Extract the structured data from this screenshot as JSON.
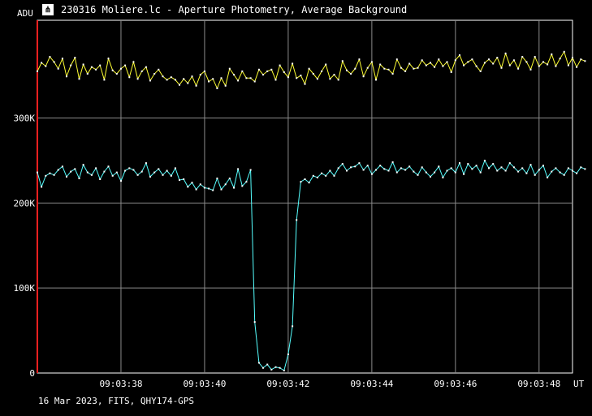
{
  "window": {
    "title": "230316 Moliere.lc - Aperture Photometry, Average Background",
    "footer": "16 Mar 2023, FITS, QHY174-GPS",
    "app_icon": "lightcurve-app-icon"
  },
  "chart_data": {
    "type": "line",
    "title": "230316 Moliere.lc - Aperture Photometry, Average Background",
    "xlabel": "UT",
    "ylabel": "ADU",
    "x_unit": "seconds after 09:03:36",
    "xlim": [
      36.0,
      48.8
    ],
    "ylim": [
      0,
      415000
    ],
    "grid": true,
    "y_ticks": [
      {
        "value": 0,
        "label": "0"
      },
      {
        "value": 100000,
        "label": "100K"
      },
      {
        "value": 200000,
        "label": "200K"
      },
      {
        "value": 300000,
        "label": "300K"
      }
    ],
    "x_ticks": [
      {
        "value": 38,
        "label": "09:03:38"
      },
      {
        "value": 40,
        "label": "09:03:40"
      },
      {
        "value": 42,
        "label": "09:03:42"
      },
      {
        "value": 44,
        "label": "09:03:44"
      },
      {
        "value": 46,
        "label": "09:03:46"
      },
      {
        "value": 48,
        "label": "09:03:48"
      }
    ],
    "event_marker": {
      "x": 36.0,
      "color": "#ff2020"
    },
    "series": [
      {
        "color": "#ffff33",
        "x_start": 36.0,
        "x_step": 0.1,
        "values": [
          355000,
          365000,
          361000,
          372000,
          366000,
          358000,
          370000,
          349000,
          362000,
          371000,
          346000,
          363000,
          352000,
          360000,
          357000,
          362000,
          345000,
          370000,
          356000,
          352000,
          358000,
          362000,
          348000,
          366000,
          346000,
          355000,
          360000,
          344000,
          352000,
          357000,
          349000,
          345000,
          348000,
          345000,
          339000,
          346000,
          341000,
          349000,
          338000,
          351000,
          355000,
          343000,
          346000,
          335000,
          347000,
          338000,
          358000,
          351000,
          344000,
          355000,
          347000,
          347000,
          343000,
          357000,
          351000,
          355000,
          357000,
          345000,
          362000,
          354000,
          348000,
          364000,
          347000,
          350000,
          340000,
          358000,
          352000,
          346000,
          355000,
          363000,
          346000,
          351000,
          345000,
          367000,
          356000,
          352000,
          358000,
          369000,
          349000,
          359000,
          366000,
          345000,
          363000,
          358000,
          357000,
          352000,
          369000,
          359000,
          355000,
          364000,
          358000,
          359000,
          368000,
          362000,
          365000,
          360000,
          369000,
          361000,
          366000,
          354000,
          368000,
          374000,
          362000,
          366000,
          369000,
          361000,
          355000,
          365000,
          369000,
          364000,
          371000,
          359000,
          376000,
          362000,
          368000,
          358000,
          372000,
          366000,
          357000,
          372000,
          361000,
          366000,
          363000,
          375000,
          361000,
          370000,
          378000,
          362000,
          371000,
          360000,
          369000,
          367000
        ],
        "dot": true
      },
      {
        "color": "#55ffff",
        "x_start": 36.0,
        "x_step": 0.1,
        "values": [
          236000,
          219000,
          232000,
          235000,
          233000,
          239000,
          243000,
          231000,
          237000,
          240000,
          229000,
          245000,
          236000,
          233000,
          241000,
          228000,
          237000,
          243000,
          232000,
          236000,
          226000,
          238000,
          241000,
          239000,
          233000,
          237000,
          247000,
          231000,
          236000,
          240000,
          233000,
          238000,
          232000,
          241000,
          227000,
          228000,
          219000,
          224000,
          216000,
          222000,
          218000,
          217000,
          215000,
          229000,
          216000,
          222000,
          229000,
          218000,
          240000,
          220000,
          225000,
          239000,
          60000,
          12000,
          6000,
          10000,
          4000,
          7000,
          6000,
          3000,
          22000,
          55000,
          180000,
          225000,
          228000,
          224000,
          232000,
          230000,
          235000,
          232000,
          238000,
          232000,
          241000,
          246000,
          238000,
          242000,
          243000,
          247000,
          239000,
          244000,
          234000,
          239000,
          244000,
          240000,
          238000,
          248000,
          236000,
          241000,
          239000,
          243000,
          237000,
          233000,
          242000,
          236000,
          231000,
          236000,
          243000,
          230000,
          238000,
          241000,
          236000,
          247000,
          234000,
          246000,
          240000,
          244000,
          236000,
          250000,
          241000,
          246000,
          238000,
          242000,
          238000,
          247000,
          242000,
          237000,
          241000,
          235000,
          245000,
          233000,
          239000,
          244000,
          230000,
          237000,
          241000,
          236000,
          233000,
          241000,
          238000,
          235000,
          242000,
          240000
        ],
        "dot": true
      }
    ]
  }
}
